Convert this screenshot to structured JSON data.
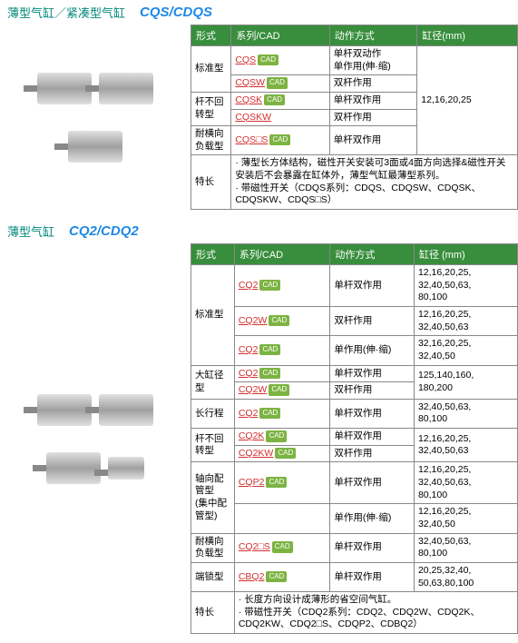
{
  "sections": [
    {
      "title_cn": "薄型气缸／紧凑型气缸",
      "title_code": "CQS/CDQS",
      "headers": [
        "形式",
        "系列/CAD",
        "动作方式",
        "缸径(mm)"
      ],
      "bore_text": "12,16,20,25",
      "rows": [
        {
          "form": "标准型",
          "form_rowspan": 2,
          "cads": [
            {
              "code": "CQS",
              "badge": true
            }
          ],
          "action": "单杆双动作\n单作用(伸·缩)",
          "bore_start": true,
          "bore_rowspan": 5
        },
        {
          "cads": [
            {
              "code": "CQSW",
              "badge": true
            }
          ],
          "action": "双杆作用"
        },
        {
          "form": "杆不回转型",
          "form_rowspan": 2,
          "cads": [
            {
              "code": "CQSK",
              "badge": true
            }
          ],
          "action": "单杆双作用"
        },
        {
          "cads": [
            {
              "code": "CQSKW",
              "badge": false
            }
          ],
          "action": "双杆作用"
        },
        {
          "form": "耐横向负载型",
          "cads": [
            {
              "code": "CQS□S",
              "badge": true
            }
          ],
          "action": "单杆双作用"
        }
      ],
      "feature_label": "特长",
      "feature_text": "· 薄型长方体结构，磁性开关安装可3面或4面方向选择&磁性开关安装后不会暴露在缸体外，薄型气缸最薄型系列。\n· 带磁性开关（CDQS系列：CDQS、CDQSW、CDQSK、CDQSKW、CDQS□S）"
    },
    {
      "title_cn": "薄型气缸",
      "title_code": "CQ2/CDQ2",
      "headers": [
        "形式",
        "系列/CAD",
        "动作方式",
        "缸径 (mm)"
      ],
      "rows2": [
        {
          "form": "标准型",
          "form_rowspan": 3,
          "cads": [
            {
              "code": "CQ2",
              "badge": true
            }
          ],
          "action": "单杆双作用",
          "bore": "12,16,20,25,\n32,40,50,63,\n80,100"
        },
        {
          "cads": [
            {
              "code": "CQ2W",
              "badge": true
            }
          ],
          "action": "双杆作用",
          "bore": "12,16,20,25,\n32,40,50,63"
        },
        {
          "cads": [
            {
              "code": "CQ2",
              "badge": true
            }
          ],
          "action": "单作用(伸·缩)",
          "bore": "32,16,20,25,\n32,40,50"
        },
        {
          "form": "大缸径型",
          "form_rowspan": 2,
          "cads": [
            {
              "code": "CQ2",
              "badge": true
            }
          ],
          "action": "单杆双作用",
          "bore": "125,140,160,\n180,200"
        },
        {
          "cads": [
            {
              "code": "CQ2W",
              "badge": true
            }
          ],
          "action": "双杆作用",
          "bore": ""
        },
        {
          "form": "长行程",
          "cads": [
            {
              "code": "CQ2",
              "badge": true
            }
          ],
          "action": "单杆双作用",
          "bore": "32,40,50,63,\n80,100"
        },
        {
          "form": "杆不回转型",
          "form_rowspan": 2,
          "cads": [
            {
              "code": "CQ2K",
              "badge": true
            }
          ],
          "action": "单杆双作用",
          "bore": "12,16,20,25,\n32,40,50,63"
        },
        {
          "cads": [
            {
              "code": "CQ2KW",
              "badge": true
            }
          ],
          "action": "双杆作用",
          "bore": ""
        },
        {
          "form": "轴向配管型\n(集中配管型)",
          "form_rowspan": 2,
          "cads": [
            {
              "code": "CQP2",
              "badge": true
            }
          ],
          "action": "单杆双作用",
          "bore": "12,16,20,25,\n32,40,50,63,\n80,100"
        },
        {
          "cads": [],
          "action": "单作用(伸·缩)",
          "bore": "12,16,20,25,\n32,40,50"
        },
        {
          "form": "耐横向负载型",
          "cads": [
            {
              "code": "CQ2□S",
              "badge": true
            }
          ],
          "action": "单杆双作用",
          "bore": "32,40,50,63,\n80,100"
        },
        {
          "form": "端锁型",
          "cads": [
            {
              "code": "CBQ2",
              "badge": true
            }
          ],
          "action": "单杆双作用",
          "bore": "20,25,32,40,\n50,63,80,100"
        }
      ],
      "feature_label": "特长",
      "feature_text": "· 长度方向设计成薄形的省空间气缸。\n· 带磁性开关（CDQ2系列：CDQ2、CDQ2W、CDQ2K、CDQ2KW、CDQ2□S、CDQP2、CDBQ2）"
    }
  ],
  "colors": {
    "header_bg": "#388e3c",
    "title_cn": "#00897b",
    "title_code": "#1e88e5",
    "link": "#d32f2f",
    "badge": "#7cb342"
  }
}
